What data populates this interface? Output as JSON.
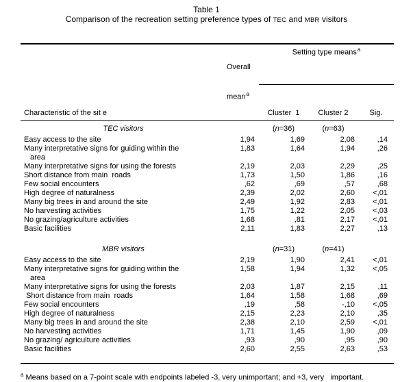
{
  "title": {
    "line1": "Table 1",
    "line2_pre": "Comparison of the recreation setting preference types of",
    "tec": "TEC",
    "line2_mid": "and",
    "mbr": "MBR",
    "line2_suf": "visitors"
  },
  "header": {
    "characteristic": "Characteristic of the sit e",
    "overall_line1": "Overall",
    "overall_line2": "mean",
    "setting": "Setting type means",
    "cluster1": "Cluster  1",
    "cluster2": "Cluster 2",
    "sig": "Sig.",
    "sup": "a"
  },
  "sections": [
    {
      "name": "TEC visitors",
      "n1": {
        "pre": "(",
        "it": "n",
        "post": "=36)"
      },
      "n2": {
        "pre": "(",
        "it": "n",
        "post": "=63)"
      },
      "rows": [
        {
          "label": "Easy access to the site",
          "overall": "1,94",
          "c1": "1,69",
          "c2": "2,08",
          "sig": ",14"
        },
        {
          "label": "Many interpretative signs for guiding within the",
          "label2": "area",
          "overall": "1,83",
          "c1": "1,64",
          "c2": "1,94",
          "sig": ",26"
        },
        {
          "label": "Many interpretative signs for using the forests",
          "overall": "2,19",
          "c1": "2,03",
          "c2": "2,29",
          "sig": ",25"
        },
        {
          "label": "Short distance from main  roads",
          "overall": "1,73",
          "c1": "1,50",
          "c2": "1,86",
          "sig": ",16"
        },
        {
          "label": "Few social encounters",
          "overall": ",62",
          "c1": ",69",
          "c2": ",57",
          "sig": ",68"
        },
        {
          "label": "High degree of naturalness",
          "overall": "2,39",
          "c1": "2,02",
          "c2": "2,60",
          "sig": "<,01"
        },
        {
          "label": "Many big trees in and around the site",
          "overall": "2,49",
          "c1": "1,92",
          "c2": "2,83",
          "sig": "<,01"
        },
        {
          "label": "No harvesting activities",
          "overall": "1,75",
          "c1": "1,22",
          "c2": "2,05",
          "sig": "<,03"
        },
        {
          "label": "No grazing/agriculture activities",
          "overall": "1,68",
          "c1": ",81",
          "c2": "2,17",
          "sig": "<,01"
        },
        {
          "label": "Basic facilities",
          "overall": "2,11",
          "c1": "1,83",
          "c2": "2,27",
          "sig": ",13"
        }
      ]
    },
    {
      "name": "MBR visitors",
      "n1": {
        "pre": "(",
        "it": "n",
        "post": "=31)"
      },
      "n2": {
        "pre": "(",
        "it": "n",
        "post": "=41)"
      },
      "rows": [
        {
          "label": "Easy access to the site",
          "overall": "2,19",
          "c1": "1,90",
          "c2": "2,41",
          "sig": "<,01"
        },
        {
          "label": "Many interpretative signs for guiding within the",
          "label2": "area",
          "overall": "1,58",
          "c1": "1,94",
          "c2": "1,32",
          "sig": "<,05"
        },
        {
          "label": "Many interpretative signs for using the forests",
          "overall": "2,03",
          "c1": "1,87",
          "c2": "2,15",
          "sig": ",11"
        },
        {
          "label": " Short distance from main  roads",
          "overall": "1,64",
          "c1": "1,58",
          "c2": "1,68",
          "sig": ",69"
        },
        {
          "label": "Few social encounters",
          "overall": ",19",
          "c1": ",58",
          "c2": "-,10",
          "sig": "<,05"
        },
        {
          "label": "High degree of naturalness",
          "overall": "2,15",
          "c1": "2,23",
          "c2": "2,10",
          "sig": ",35"
        },
        {
          "label": "Many big trees in and around the site",
          "overall": "2,38",
          "c1": "2,10",
          "c2": "2,59",
          "sig": "<,01"
        },
        {
          "label": "No harvesting activities",
          "overall": "1,71",
          "c1": "1,45",
          "c2": "1,90",
          "sig": ",09"
        },
        {
          "label": "No grazing/ agriculture activities",
          "overall": ",93",
          "c1": ",90",
          "c2": ",95",
          "sig": ",90"
        },
        {
          "label": "Basic facilities",
          "overall": "2,60",
          "c1": "2,55",
          "c2": "2,63",
          "sig": ",53"
        }
      ]
    }
  ],
  "footnote": {
    "sup": "a",
    "text": " Means based on a 7-point scale with endpoints labeled -3, very unimportant; and +3, very   important."
  }
}
